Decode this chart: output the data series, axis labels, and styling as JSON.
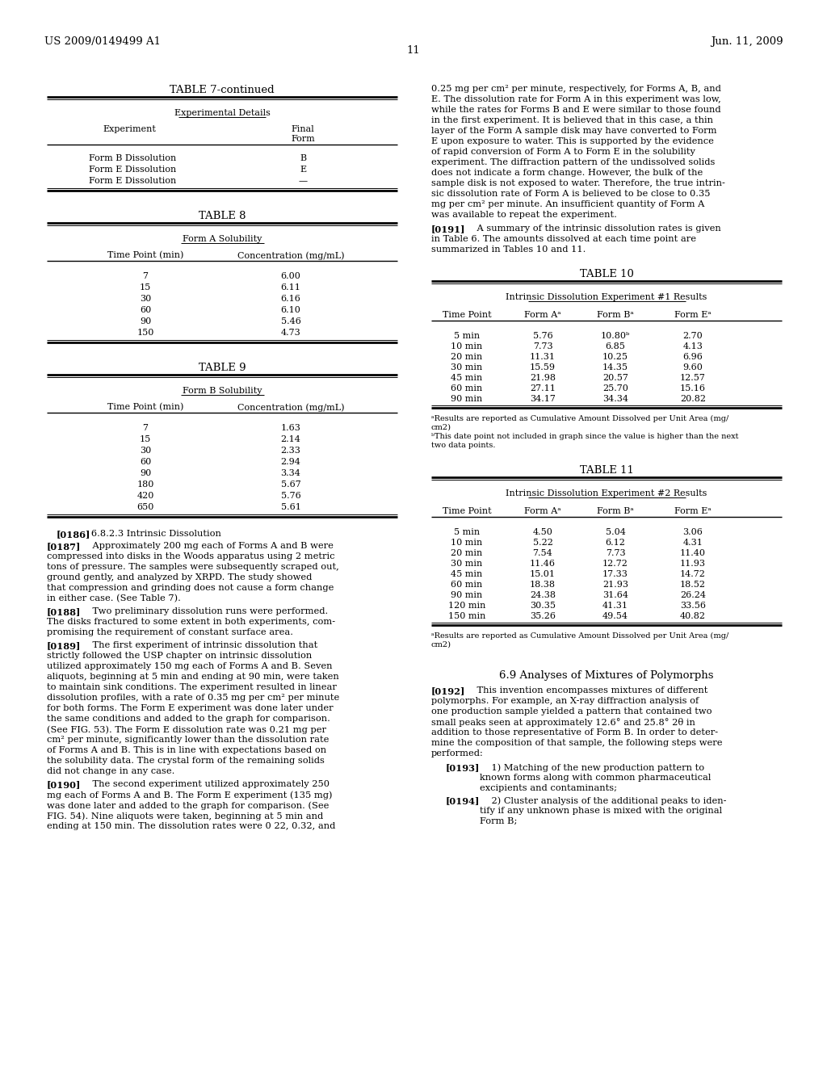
{
  "bg_color": "#ffffff",
  "header_left": "US 2009/0149499 A1",
  "header_center": "11",
  "header_right": "Jun. 11, 2009",
  "table7_title": "TABLE 7-continued",
  "table7_subtitle": "Experimental Details",
  "table7_col1": "Experiment",
  "table7_col2_line1": "Final",
  "table7_col2_line2": "Form",
  "table7_rows": [
    [
      "Form B Dissolution",
      "B"
    ],
    [
      "Form E Dissolution",
      "E"
    ],
    [
      "Form E Dissolution",
      "—"
    ]
  ],
  "table8_title": "TABLE 8",
  "table8_subtitle": "Form A Solubility",
  "table8_col1": "Time Point (min)",
  "table8_col2": "Concentration (mg/mL)",
  "table8_rows": [
    [
      "7",
      "6.00"
    ],
    [
      "15",
      "6.11"
    ],
    [
      "30",
      "6.16"
    ],
    [
      "60",
      "6.10"
    ],
    [
      "90",
      "5.46"
    ],
    [
      "150",
      "4.73"
    ]
  ],
  "table9_title": "TABLE 9",
  "table9_subtitle": "Form B Solubility",
  "table9_col1": "Time Point (min)",
  "table9_col2": "Concentration (mg/mL)",
  "table9_rows": [
    [
      "7",
      "1.63"
    ],
    [
      "15",
      "2.14"
    ],
    [
      "30",
      "2.33"
    ],
    [
      "60",
      "2.94"
    ],
    [
      "90",
      "3.34"
    ],
    [
      "180",
      "5.67"
    ],
    [
      "420",
      "5.76"
    ],
    [
      "650",
      "5.61"
    ]
  ],
  "table10_title": "TABLE 10",
  "table10_subtitle": "Intrinsic Dissolution Experiment #1 Results",
  "table10_col1": "Time Point",
  "table10_col2": "Form Aᵃ",
  "table10_col3": "Form Bᵃ",
  "table10_col4": "Form Eᵃ",
  "table10_rows": [
    [
      "5 min",
      "5.76",
      "10.80ᵇ",
      "2.70"
    ],
    [
      "10 min",
      "7.73",
      "6.85",
      "4.13"
    ],
    [
      "20 min",
      "11.31",
      "10.25",
      "6.96"
    ],
    [
      "30 min",
      "15.59",
      "14.35",
      "9.60"
    ],
    [
      "45 min",
      "21.98",
      "20.57",
      "12.57"
    ],
    [
      "60 min",
      "27.11",
      "25.70",
      "15.16"
    ],
    [
      "90 min",
      "34.17",
      "34.34",
      "20.82"
    ]
  ],
  "table10_footnote1": "ᵃResults are reported as Cumulative Amount Dissolved per Unit Area (mg/\ncm2)",
  "table10_footnote2": "ᵇThis date point not included in graph since the value is higher than the next\ntwo data points.",
  "table11_title": "TABLE 11",
  "table11_subtitle": "Intrinsic Dissolution Experiment #2 Results",
  "table11_col1": "Time Point",
  "table11_col2": "Form Aᵃ",
  "table11_col3": "Form Bᵃ",
  "table11_col4": "Form Eᵃ",
  "table11_rows": [
    [
      "5 min",
      "4.50",
      "5.04",
      "3.06"
    ],
    [
      "10 min",
      "5.22",
      "6.12",
      "4.31"
    ],
    [
      "20 min",
      "7.54",
      "7.73",
      "11.40"
    ],
    [
      "30 min",
      "11.46",
      "12.72",
      "11.93"
    ],
    [
      "45 min",
      "15.01",
      "17.33",
      "14.72"
    ],
    [
      "60 min",
      "18.38",
      "21.93",
      "18.52"
    ],
    [
      "90 min",
      "24.38",
      "31.64",
      "26.24"
    ],
    [
      "120 min",
      "30.35",
      "41.31",
      "33.56"
    ],
    [
      "150 min",
      "35.26",
      "49.54",
      "40.82"
    ]
  ],
  "table11_footnote": "ᵃResults are reported as Cumulative Amount Dissolved per Unit Area (mg/\ncm2)",
  "left_para_0186_tag": "[0186]",
  "left_para_0186_text": "   6.8.2.3 Intrinsic Dissolution",
  "left_para_0187_tag": "[0187]",
  "left_para_0187_text": "    Approximately 200 mg each of Forms A and B were\ncompressed into disks in the Woods apparatus using 2 metric\ntons of pressure. The samples were subsequently scraped out,\nground gently, and analyzed by XRPD. The study showed\nthat compression and grinding does not cause a form change\nin either case. (See Table 7).",
  "left_para_0188_tag": "[0188]",
  "left_para_0188_text": "    Two preliminary dissolution runs were performed.\nThe disks fractured to some extent in both experiments, com-\npromising the requirement of constant surface area.",
  "left_para_0189_tag": "[0189]",
  "left_para_0189_text": "    The first experiment of intrinsic dissolution that\nstrictly followed the USP chapter on intrinsic dissolution\nutilized approximately 150 mg each of Forms A and B. Seven\naliquots, beginning at 5 min and ending at 90 min, were taken\nto maintain sink conditions. The experiment resulted in linear\ndissolution profiles, with a rate of 0.35 mg per cm² per minute\nfor both forms. The Form E experiment was done later under\nthe same conditions and added to the graph for comparison.\n(See FIG. 53). The Form E dissolution rate was 0.21 mg per\ncm² per minute, significantly lower than the dissolution rate\nof Forms A and B. This is in line with expectations based on\nthe solubility data. The crystal form of the remaining solids\ndid not change in any case.",
  "left_para_0190_tag": "[0190]",
  "left_para_0190_text": "    The second experiment utilized approximately 250\nmg each of Forms A and B. The Form E experiment (135 mg)\nwas done later and added to the graph for comparison. (See\nFIG. 54). Nine aliquots were taken, beginning at 5 min and\nending at 150 min. The dissolution rates were 0 22, 0.32, and",
  "right_para_top": "0.25 mg per cm² per minute, respectively, for Forms A, B, and\nE. The dissolution rate for Form A in this experiment was low,\nwhile the rates for Forms B and E were similar to those found\nin the first experiment. It is believed that in this case, a thin\nlayer of the Form A sample disk may have converted to Form\nE upon exposure to water. This is supported by the evidence\nof rapid conversion of Form A to Form E in the solubility\nexperiment. The diffraction pattern of the undissolved solids\ndoes not indicate a form change. However, the bulk of the\nsample disk is not exposed to water. Therefore, the true intrin-\nsic dissolution rate of Form A is believed to be close to 0.35\nmg per cm² per minute. An insufficient quantity of Form A\nwas available to repeat the experiment.",
  "right_para_0191_tag": "[0191]",
  "right_para_0191_text": "    A summary of the intrinsic dissolution rates is given\nin Table 6. The amounts dissolved at each time point are\nsummarized in Tables 10 and 11.",
  "right_para_section69": "6.9 Analyses of Mixtures of Polymorphs",
  "right_para_0192_tag": "[0192]",
  "right_para_0192_text": "    This invention encompasses mixtures of different\npolymorphs. For example, an X-ray diffraction analysis of\none production sample yielded a pattern that contained two\nsmall peaks seen at approximately 12.6° and 25.8° 2θ in\naddition to those representative of Form B. In order to deter-\nmine the composition of that sample, the following steps were\nperformed:",
  "right_para_0193_tag": "[0193]",
  "right_para_0193_text": "    1) Matching of the new production pattern to\nknown forms along with common pharmaceutical\nexcipients and contaminants;",
  "right_para_0194_tag": "[0194]",
  "right_para_0194_text": "    2) Cluster analysis of the additional peaks to iden-\ntify if any unknown phase is mixed with the original\nForm B;"
}
